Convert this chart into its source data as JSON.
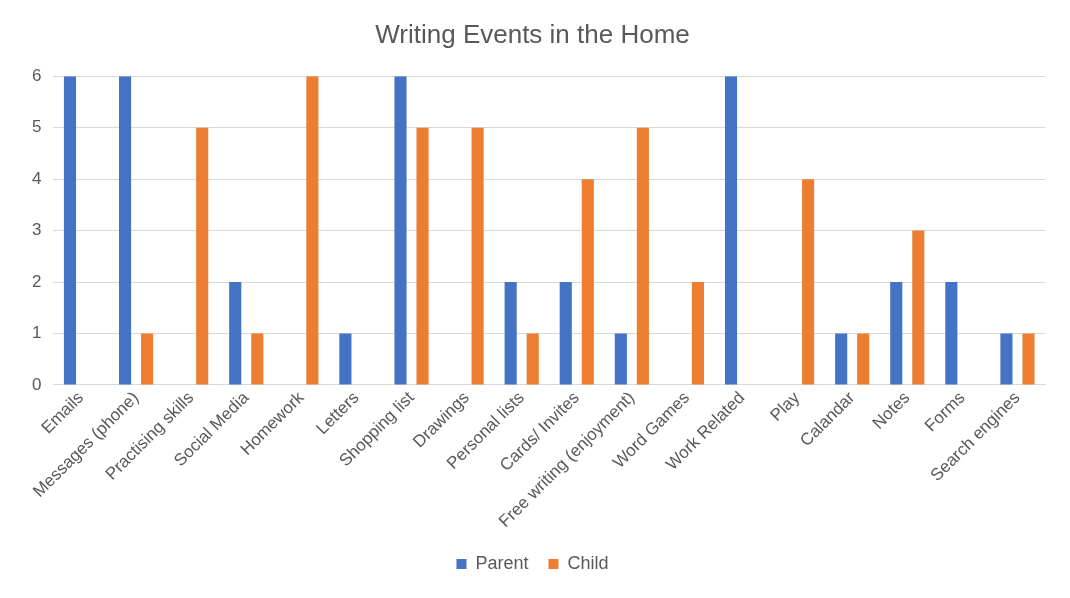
{
  "chart_data": {
    "type": "bar",
    "title": "Writing Events in the Home",
    "categories": [
      "Emails",
      "Messages (phone)",
      "Practising skills",
      "Social Media",
      "Homework",
      "Letters",
      "Shopping list",
      "Drawings",
      "Personal lists",
      "Cards/ Invites",
      "Free writing (enjoyment)",
      "Word Games",
      "Work Related",
      "Play",
      "Calandar",
      "Notes",
      "Forms",
      "Search engines"
    ],
    "series": [
      {
        "name": "Parent",
        "color": "#4472c4",
        "values": [
          6,
          6,
          0,
          2,
          0,
          1,
          6,
          0,
          2,
          2,
          1,
          0,
          6,
          0,
          1,
          2,
          2,
          1
        ]
      },
      {
        "name": "Child",
        "color": "#ed7d31",
        "values": [
          0,
          1,
          5,
          1,
          6,
          0,
          5,
          5,
          1,
          4,
          5,
          2,
          0,
          4,
          1,
          3,
          0,
          1
        ]
      }
    ],
    "ylim": [
      0,
      6
    ],
    "yticks": [
      0,
      1,
      2,
      3,
      4,
      5,
      6
    ],
    "grid": "y",
    "legend": "bottom"
  }
}
